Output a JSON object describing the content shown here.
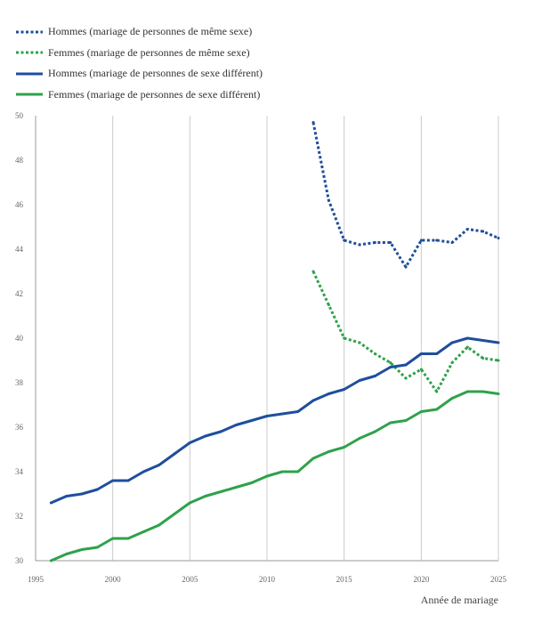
{
  "chart_data": {
    "type": "line",
    "xlabel": "Année de mariage",
    "ylabel": "",
    "xlim": [
      1995,
      2025
    ],
    "ylim": [
      30,
      50
    ],
    "x_ticks": [
      "1995",
      "2000",
      "2005",
      "2010",
      "2015",
      "2020",
      "2025"
    ],
    "y_ticks": [
      "30",
      "32",
      "34",
      "36",
      "38",
      "40",
      "42",
      "44",
      "46",
      "48",
      "50"
    ],
    "grid": "vertical",
    "legend_position": "top-left",
    "series": [
      {
        "name": "Hommes (mariage de personnes de même sexe)",
        "color": "#1f4e9c",
        "style": "dotted",
        "x": [
          2013,
          2014,
          2015,
          2016,
          2017,
          2018,
          2019,
          2020,
          2021,
          2022,
          2023,
          2024,
          2025
        ],
        "y": [
          49.7,
          46.2,
          44.4,
          44.2,
          44.3,
          44.3,
          43.2,
          44.4,
          44.4,
          44.3,
          44.9,
          44.8,
          44.5
        ]
      },
      {
        "name": "Femmes (mariage de personnes de même sexe)",
        "color": "#2ea24a",
        "style": "dotted",
        "x": [
          2013,
          2014,
          2015,
          2016,
          2017,
          2018,
          2019,
          2020,
          2021,
          2022,
          2023,
          2024,
          2025
        ],
        "y": [
          43.0,
          41.5,
          40.0,
          39.8,
          39.3,
          38.9,
          38.2,
          38.6,
          37.6,
          38.9,
          39.6,
          39.1,
          39.0
        ]
      },
      {
        "name": "Hommes (mariage de personnes de sexe différent)",
        "color": "#1f4e9c",
        "style": "solid",
        "x": [
          1996,
          1997,
          1998,
          1999,
          2000,
          2001,
          2002,
          2003,
          2004,
          2005,
          2006,
          2007,
          2008,
          2009,
          2010,
          2011,
          2012,
          2013,
          2014,
          2015,
          2016,
          2017,
          2018,
          2019,
          2020,
          2021,
          2022,
          2023,
          2024,
          2025
        ],
        "y": [
          32.6,
          32.9,
          33.0,
          33.2,
          33.6,
          33.6,
          34.0,
          34.3,
          34.8,
          35.3,
          35.6,
          35.8,
          36.1,
          36.3,
          36.5,
          36.6,
          36.7,
          37.2,
          37.5,
          37.7,
          38.1,
          38.3,
          38.7,
          38.8,
          39.3,
          39.3,
          39.8,
          40.0,
          39.9,
          39.8
        ]
      },
      {
        "name": "Femmes (mariage de personnes de sexe différent)",
        "color": "#2ea24a",
        "style": "solid",
        "x": [
          1996,
          1997,
          1998,
          1999,
          2000,
          2001,
          2002,
          2003,
          2004,
          2005,
          2006,
          2007,
          2008,
          2009,
          2010,
          2011,
          2012,
          2013,
          2014,
          2015,
          2016,
          2017,
          2018,
          2019,
          2020,
          2021,
          2022,
          2023,
          2024,
          2025
        ],
        "y": [
          30.0,
          30.3,
          30.5,
          30.6,
          31.0,
          31.0,
          31.3,
          31.6,
          32.1,
          32.6,
          32.9,
          33.1,
          33.3,
          33.5,
          33.8,
          34.0,
          34.0,
          34.6,
          34.9,
          35.1,
          35.5,
          35.8,
          36.2,
          36.3,
          36.7,
          36.8,
          37.3,
          37.6,
          37.6,
          37.5
        ]
      }
    ]
  }
}
